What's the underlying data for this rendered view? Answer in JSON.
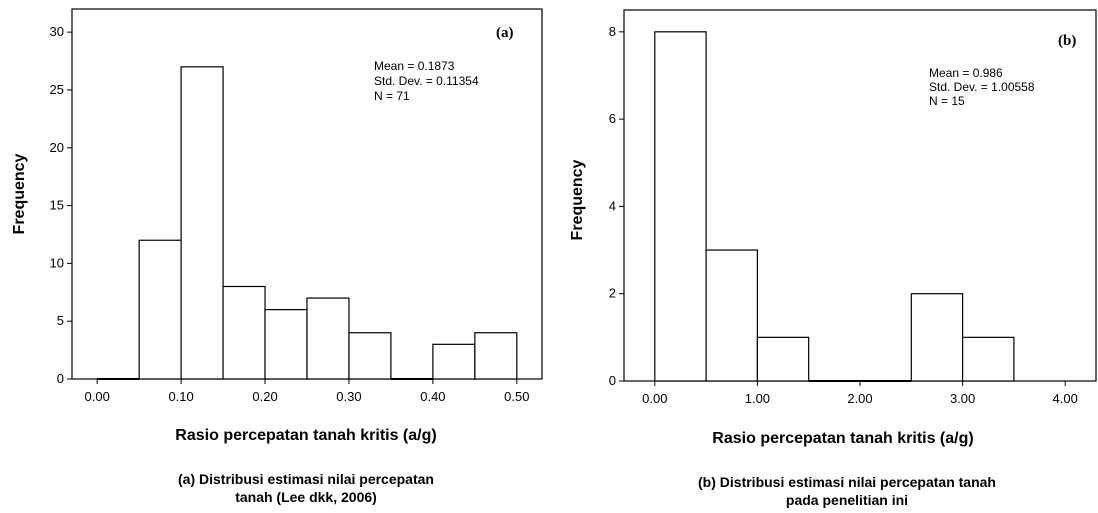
{
  "chart_data": [
    {
      "type": "bar",
      "panel_label": "(a)",
      "bin_edges": [
        0.0,
        0.05,
        0.1,
        0.15,
        0.2,
        0.25,
        0.3,
        0.35,
        0.4,
        0.45,
        0.5
      ],
      "values": [
        0,
        12,
        27,
        8,
        6,
        7,
        4,
        0,
        3,
        4
      ],
      "xlabel": "Rasio percepatan tanah kritis (a/g)",
      "ylabel": "Frequency",
      "xlim": [
        -0.03,
        0.53
      ],
      "ylim": [
        0,
        32
      ],
      "x_ticks": [
        "0.00",
        "0.10",
        "0.20",
        "0.30",
        "0.40",
        "0.50"
      ],
      "y_ticks": [
        "0",
        "5",
        "10",
        "15",
        "20",
        "25",
        "30"
      ],
      "stats": [
        "Mean = 0.1873",
        "Std. Dev. = 0.11354",
        "N = 71"
      ],
      "caption_lines": [
        "(a) Distribusi estimasi nilai percepatan",
        "tanah (Lee dkk, 2006)"
      ]
    },
    {
      "type": "bar",
      "panel_label": "(b)",
      "bin_edges": [
        0.0,
        0.5,
        1.0,
        1.5,
        2.0,
        2.5,
        3.0,
        3.5
      ],
      "values": [
        8,
        3,
        1,
        0,
        0,
        2,
        1
      ],
      "xlabel": "Rasio percepatan tanah kritis (a/g)",
      "ylabel": "Frequency",
      "xlim": [
        -0.3,
        4.3
      ],
      "ylim": [
        0,
        8.5
      ],
      "x_ticks": [
        "0.00",
        "1.00",
        "2.00",
        "3.00",
        "4.00"
      ],
      "y_ticks": [
        "0",
        "2",
        "4",
        "6",
        "8"
      ],
      "stats": [
        "Mean = 0.986",
        "Std. Dev. = 1.00558",
        "N = 15"
      ],
      "caption_lines": [
        "(b) Distribusi estimasi nilai percepatan tanah",
        "pada penelitian ini"
      ]
    }
  ],
  "colors": {
    "bar_fill": "#ffffff",
    "stroke": "#000000",
    "background": "#ffffff"
  }
}
